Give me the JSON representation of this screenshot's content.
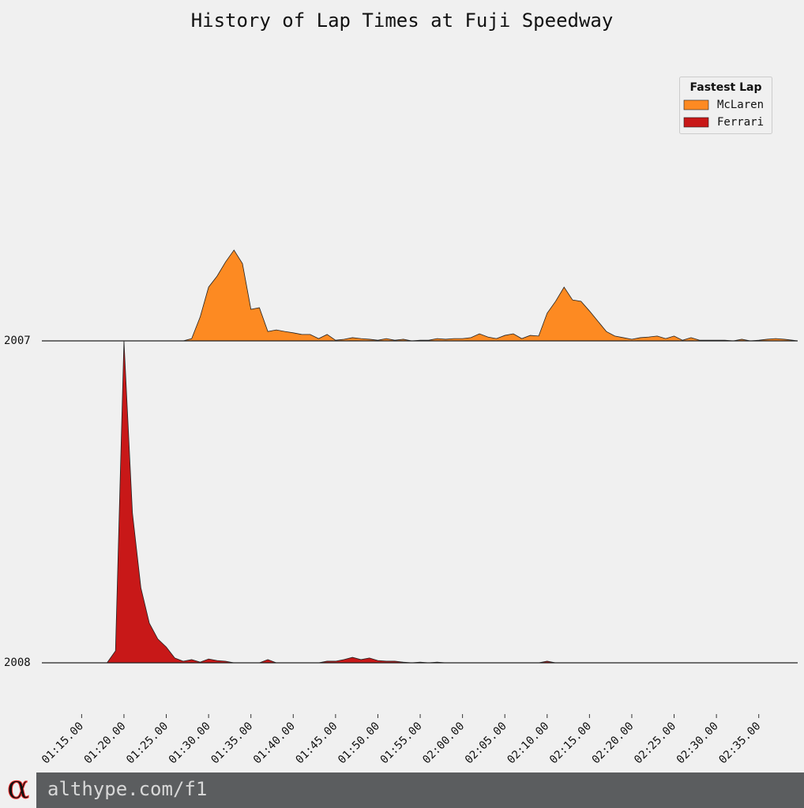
{
  "chart_data": {
    "type": "ridgeline",
    "title": "History of Lap Times at Fuji Speedway",
    "legend_title": "Fastest Lap",
    "legend": "upper right",
    "categories": [
      "2007",
      "2008"
    ],
    "x": [
      71,
      72,
      73,
      74,
      75,
      76,
      77,
      78,
      79,
      80,
      81,
      82,
      83,
      84,
      85,
      86,
      87,
      88,
      89,
      90,
      91,
      92,
      93,
      94,
      95,
      96,
      97,
      98,
      99,
      100,
      101,
      102,
      103,
      104,
      105,
      106,
      107,
      108,
      109,
      110,
      111,
      112,
      113,
      114,
      115,
      116,
      117,
      118,
      119,
      120,
      121,
      122,
      123,
      124,
      125,
      126,
      127,
      128,
      129,
      130,
      131,
      132,
      133,
      134,
      135,
      136,
      137,
      138,
      139,
      140,
      141,
      142,
      143,
      144,
      145,
      146,
      147,
      148,
      149,
      150,
      151,
      152,
      153,
      154,
      155,
      156,
      157,
      158,
      159
    ],
    "series": [
      {
        "name": "McLaren",
        "color": "#fd8a22",
        "values": [
          0,
          0,
          0,
          0,
          0,
          0,
          0,
          0,
          0,
          0,
          0,
          0,
          0,
          0,
          0,
          0,
          0,
          0.7,
          7.4,
          16.7,
          20.1,
          24.5,
          28.2,
          24.0,
          9.8,
          10.3,
          2.9,
          3.4,
          2.9,
          2.5,
          2.0,
          2.0,
          0.7,
          2.0,
          0.2,
          0.5,
          1.0,
          0.7,
          0.5,
          0.2,
          0.7,
          0.2,
          0.5,
          0,
          0.2,
          0.2,
          0.7,
          0.5,
          0.7,
          0.7,
          1.0,
          2.2,
          1.2,
          0.7,
          1.7,
          2.2,
          0.7,
          1.7,
          1.5,
          8.6,
          12.3,
          16.7,
          12.7,
          12.3,
          9.3,
          6.1,
          2.9,
          1.5,
          1.0,
          0.5,
          1.0,
          1.2,
          1.5,
          0.7,
          1.5,
          0.2,
          1.0,
          0.2,
          0.2,
          0.2,
          0.2,
          0,
          0.5,
          0,
          0.2,
          0.5,
          0.7,
          0.5,
          0.2
        ]
      },
      {
        "name": "Ferrari",
        "color": "#c81818",
        "values": [
          0,
          0,
          0,
          0,
          0,
          0,
          0,
          0,
          3.7,
          100,
          46.6,
          23.3,
          12.3,
          7.4,
          4.9,
          1.5,
          0.5,
          1.0,
          0.2,
          1.2,
          0.7,
          0.5,
          0,
          0,
          0,
          0,
          1.0,
          0,
          0,
          0,
          0,
          0,
          0,
          0.5,
          0.5,
          1.0,
          1.7,
          1.0,
          1.5,
          0.7,
          0.5,
          0.5,
          0.2,
          0,
          0.2,
          0,
          0.2,
          0,
          0,
          0,
          0,
          0,
          0,
          0,
          0,
          0,
          0,
          0,
          0,
          0.5,
          0,
          0,
          0,
          0,
          0,
          0,
          0,
          0,
          0,
          0,
          0,
          0,
          0,
          0,
          0,
          0,
          0,
          0,
          0,
          0,
          0,
          0,
          0,
          0,
          0,
          0,
          0,
          0,
          0
        ]
      }
    ],
    "xlim": [
      70.3,
      159.6
    ],
    "ylim": [
      0,
      100
    ],
    "xticks": [
      {
        "value": 75,
        "label": "01:15.00"
      },
      {
        "value": 80,
        "label": "01:20.00"
      },
      {
        "value": 85,
        "label": "01:25.00"
      },
      {
        "value": 90,
        "label": "01:30.00"
      },
      {
        "value": 95,
        "label": "01:35.00"
      },
      {
        "value": 100,
        "label": "01:40.00"
      },
      {
        "value": 105,
        "label": "01:45.00"
      },
      {
        "value": 110,
        "label": "01:50.00"
      },
      {
        "value": 115,
        "label": "01:55.00"
      },
      {
        "value": 120,
        "label": "02:00.00"
      },
      {
        "value": 125,
        "label": "02:05.00"
      },
      {
        "value": 130,
        "label": "02:10.00"
      },
      {
        "value": 135,
        "label": "02:15.00"
      },
      {
        "value": 140,
        "label": "02:20.00"
      },
      {
        "value": 145,
        "label": "02:25.00"
      },
      {
        "value": 150,
        "label": "02:30.00"
      },
      {
        "value": 155,
        "label": "02:35.00"
      }
    ]
  },
  "footer": {
    "logo": "α",
    "url": "althype.com/f1"
  }
}
